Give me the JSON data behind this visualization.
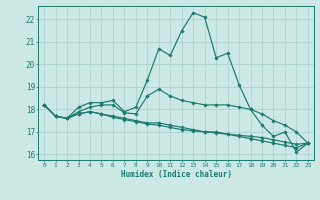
{
  "xlabel": "Humidex (Indice chaleur)",
  "background_color": "#cce8e4",
  "grid_color": "#aacfcc",
  "line_color": "#1a7a6e",
  "x": [
    0,
    1,
    2,
    3,
    4,
    5,
    6,
    7,
    8,
    9,
    10,
    11,
    12,
    13,
    14,
    15,
    16,
    17,
    18,
    19,
    20,
    21,
    22,
    23
  ],
  "series": [
    [
      18.2,
      17.7,
      17.6,
      18.1,
      18.3,
      18.3,
      18.4,
      17.9,
      18.1,
      19.3,
      20.7,
      20.4,
      21.5,
      22.3,
      22.1,
      20.3,
      20.5,
      19.1,
      18.0,
      17.3,
      16.8,
      17.0,
      16.1,
      16.5
    ],
    [
      18.2,
      17.7,
      17.6,
      17.9,
      18.1,
      18.2,
      18.2,
      17.85,
      17.8,
      18.6,
      18.9,
      18.6,
      18.4,
      18.3,
      18.2,
      18.2,
      18.2,
      18.1,
      18.0,
      17.8,
      17.5,
      17.3,
      17.0,
      16.5
    ],
    [
      18.2,
      17.7,
      17.6,
      17.8,
      17.9,
      17.8,
      17.7,
      17.6,
      17.5,
      17.4,
      17.4,
      17.3,
      17.2,
      17.1,
      17.0,
      17.0,
      16.9,
      16.8,
      16.7,
      16.6,
      16.5,
      16.4,
      16.3,
      16.5
    ],
    [
      18.2,
      17.7,
      17.6,
      17.8,
      17.9,
      17.8,
      17.65,
      17.55,
      17.45,
      17.35,
      17.3,
      17.2,
      17.1,
      17.05,
      17.0,
      16.95,
      16.9,
      16.85,
      16.8,
      16.75,
      16.65,
      16.55,
      16.45,
      16.5
    ]
  ],
  "ylim": [
    15.75,
    22.6
  ],
  "yticks": [
    16,
    17,
    18,
    19,
    20,
    21,
    22
  ],
  "xlim": [
    -0.5,
    23.5
  ]
}
